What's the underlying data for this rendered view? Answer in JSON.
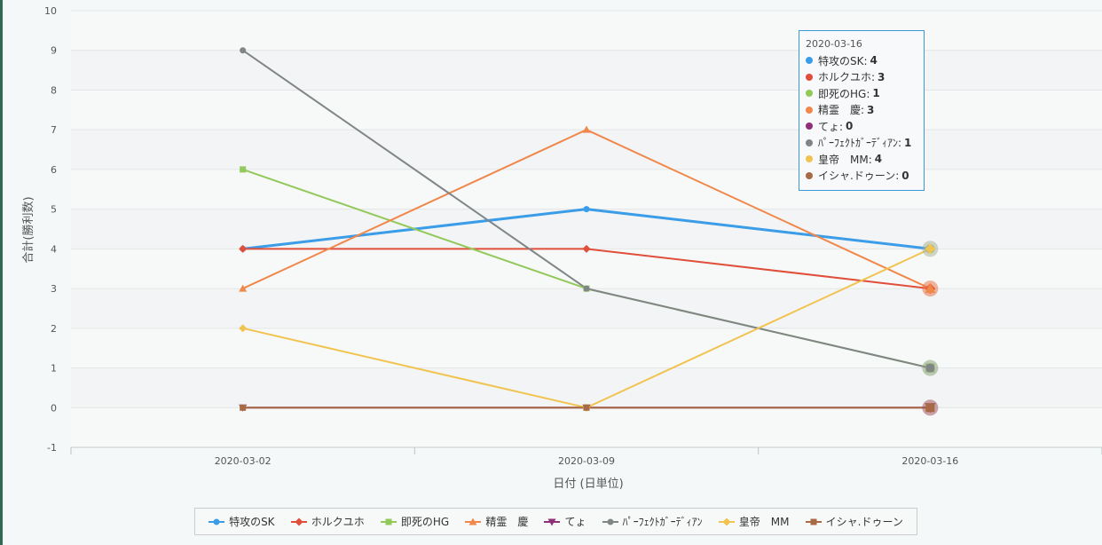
{
  "chart_data": {
    "type": "line",
    "categories": [
      "2020-03-02",
      "2020-03-09",
      "2020-03-16"
    ],
    "xlabel": "日付 (日単位)",
    "ylabel": "合計(勝利数)",
    "ylim": [
      -1,
      10
    ],
    "yticks": [
      "10",
      "9",
      "8",
      "7",
      "6",
      "5",
      "4",
      "3",
      "2",
      "1",
      "0",
      "-1"
    ],
    "grid": true,
    "legend_position": "bottom",
    "series": [
      {
        "name": "特攻のSK",
        "values": [
          4,
          5,
          4
        ],
        "color": "#3b9de8",
        "marker": "circle"
      },
      {
        "name": "ホルクユホ",
        "values": [
          4,
          4,
          3
        ],
        "color": "#e04f3a",
        "marker": "diamond"
      },
      {
        "name": "即死のHG",
        "values": [
          6,
          3,
          1
        ],
        "color": "#93c85a",
        "marker": "square"
      },
      {
        "name": "精霊　慶",
        "values": [
          3,
          7,
          3
        ],
        "color": "#f0874b",
        "marker": "triangle-up"
      },
      {
        "name": "てょ",
        "values": [
          0,
          0,
          0
        ],
        "color": "#8e2f77",
        "marker": "triangle-down"
      },
      {
        "name": "ﾊﾟｰﾌｪｸﾄｶﾞｰﾃﾞｨｱﾝ",
        "values": [
          9,
          3,
          1
        ],
        "color": "#808585",
        "marker": "circle"
      },
      {
        "name": "皇帝　MM",
        "values": [
          2,
          0,
          4
        ],
        "color": "#f1c452",
        "marker": "diamond"
      },
      {
        "name": "イシャ.ドゥーン",
        "values": [
          0,
          0,
          0
        ],
        "color": "#a86a45",
        "marker": "square"
      }
    ]
  },
  "tooltip": {
    "date": "2020-03-16",
    "rows": [
      {
        "label": "特攻のSK:",
        "value": "4",
        "color": "#3b9de8"
      },
      {
        "label": "ホルクユホ:",
        "value": "3",
        "color": "#e04f3a"
      },
      {
        "label": "即死のHG:",
        "value": "1",
        "color": "#93c85a"
      },
      {
        "label": "精霊　慶:",
        "value": "3",
        "color": "#f0874b"
      },
      {
        "label": "てょ:",
        "value": "0",
        "color": "#8e2f77"
      },
      {
        "label": "ﾊﾟｰﾌｪｸﾄｶﾞｰﾃﾞｨｱﾝ:",
        "value": "1",
        "color": "#808585"
      },
      {
        "label": "皇帝　MM:",
        "value": "4",
        "color": "#f1c452"
      },
      {
        "label": "イシャ.ドゥーン:",
        "value": "0",
        "color": "#a86a45"
      }
    ]
  }
}
